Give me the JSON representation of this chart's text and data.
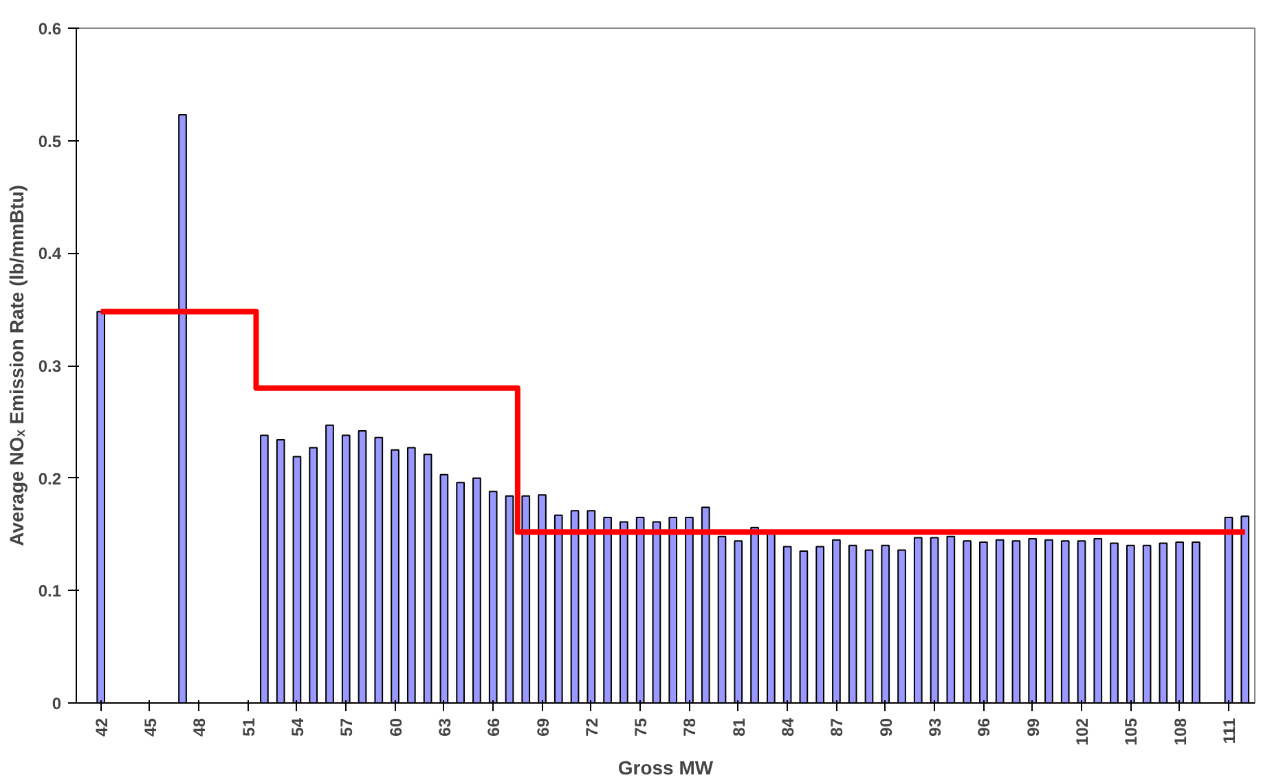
{
  "chart_data": {
    "type": "bar",
    "xlabel": "Gross MW",
    "ylabel": "Average NOₓ Emission Rate (lb/mmBtu)",
    "categories": [
      "42",
      null,
      null,
      "45",
      null,
      null,
      "48",
      null,
      null,
      "51",
      null,
      null,
      "54",
      null,
      null,
      "57",
      null,
      null,
      "60",
      null,
      null,
      "63",
      null,
      null,
      "66",
      null,
      null,
      "69",
      null,
      null,
      "72",
      null,
      null,
      "75",
      null,
      null,
      "78",
      null,
      null,
      "81",
      null,
      null,
      "84",
      null,
      null,
      "87",
      null,
      null,
      "90",
      null,
      null,
      "93",
      null,
      null,
      "96",
      null,
      null,
      "99",
      null,
      null,
      "102",
      null,
      null,
      "105",
      null,
      null,
      "108",
      null,
      null,
      "111",
      null
    ],
    "series": [
      {
        "color": "#9999ff",
        "values": [
          0.348,
          null,
          null,
          null,
          null,
          0.523,
          null,
          null,
          null,
          null,
          0.238,
          0.234,
          0.219,
          0.227,
          0.247,
          0.238,
          0.242,
          0.236,
          0.225,
          0.227,
          0.221,
          0.203,
          0.196,
          0.2,
          0.188,
          0.184,
          0.184,
          0.185,
          0.167,
          0.171,
          0.171,
          0.165,
          0.161,
          0.165,
          0.161,
          0.165,
          0.165,
          0.174,
          0.148,
          0.144,
          0.156,
          0.153,
          0.139,
          0.135,
          0.139,
          0.145,
          0.14,
          0.136,
          0.14,
          0.136,
          0.147,
          0.147,
          0.148,
          0.144,
          0.143,
          0.145,
          0.144,
          0.146,
          0.145,
          0.144,
          0.144,
          0.146,
          0.142,
          0.14,
          0.14,
          0.142,
          0.143,
          0.143,
          null,
          0.165,
          0.166
        ]
      },
      {
        "type": "step",
        "color": "#ff0000",
        "values": [
          0.348,
          0.348,
          0.348,
          0.348,
          0.348,
          0.348,
          0.348,
          0.348,
          0.348,
          0.348,
          0.28,
          0.28,
          0.28,
          0.28,
          0.28,
          0.28,
          0.28,
          0.28,
          0.28,
          0.28,
          0.28,
          0.28,
          0.28,
          0.28,
          0.28,
          0.28,
          0.152,
          0.152,
          0.152,
          0.152,
          0.152,
          0.152,
          0.152,
          0.152,
          0.152,
          0.152,
          0.152,
          0.152,
          0.152,
          0.152,
          0.152,
          0.152,
          0.152,
          0.152,
          0.152,
          0.152,
          0.152,
          0.152,
          0.152,
          0.152,
          0.152,
          0.152,
          0.152,
          0.152,
          0.152,
          0.152,
          0.152,
          0.152,
          0.152,
          0.152,
          0.152,
          0.152,
          0.152,
          0.152,
          0.152,
          0.152,
          0.152,
          0.152,
          0.152,
          0.152,
          0.152
        ]
      }
    ],
    "ylim": [
      0,
      0.6
    ],
    "yticks": [
      {
        "value": 0,
        "label": "0"
      },
      0.1,
      0.2,
      0.3,
      0.4,
      0.5,
      0.6
    ],
    "grid": false
  }
}
